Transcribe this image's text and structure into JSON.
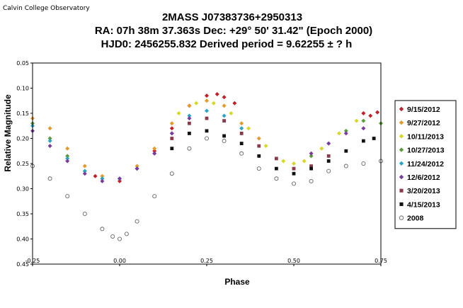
{
  "credit": "Calvin College Observatory",
  "title": "2MASS J07383736+2950313",
  "subtitle1": "RA: 07h 38m 37.363s    Dec: +29° 50' 31.42\"  (Epoch 2000)",
  "subtitle2": "HJD0: 2456255.832      Derived period =  9.62255 ±  ? h",
  "chart_data": {
    "type": "scatter",
    "xlabel": "Phase",
    "ylabel": "Relative Magnitude",
    "xlim": [
      -0.25,
      0.75
    ],
    "ylim": [
      0.45,
      0.05
    ],
    "x_ticks": [
      "-0.25",
      "0.00",
      "0.25",
      "0.50",
      "0.75"
    ],
    "y_ticks": [
      "0.05",
      "0.10",
      "0.15",
      "0.20",
      "0.25",
      "0.30",
      "0.35",
      "0.40",
      "0.45"
    ],
    "grid": false,
    "legend_position": "right",
    "series": [
      {
        "name": "9/15/2012",
        "color": "#c0202a",
        "marker": "diamond",
        "points": [
          [
            -0.07,
            0.275
          ],
          [
            0.0,
            0.285
          ],
          [
            0.05,
            0.26
          ],
          [
            0.1,
            0.225
          ],
          [
            0.15,
            0.18
          ],
          [
            0.2,
            0.135
          ],
          [
            0.25,
            0.115
          ],
          [
            0.28,
            0.112
          ],
          [
            0.3,
            0.118
          ],
          [
            0.33,
            0.13
          ],
          [
            0.7,
            0.15
          ],
          [
            0.72,
            0.155
          ],
          [
            0.74,
            0.148
          ]
        ]
      },
      {
        "name": "9/27/2012",
        "color": "#e39a2a",
        "marker": "diamond",
        "points": [
          [
            -0.25,
            0.16
          ],
          [
            -0.2,
            0.18
          ],
          [
            -0.15,
            0.22
          ],
          [
            -0.1,
            0.255
          ],
          [
            -0.05,
            0.275
          ],
          [
            0.0,
            0.28
          ],
          [
            0.05,
            0.255
          ],
          [
            0.1,
            0.22
          ],
          [
            0.15,
            0.17
          ],
          [
            0.2,
            0.135
          ],
          [
            0.25,
            0.125
          ],
          [
            0.3,
            0.135
          ],
          [
            0.35,
            0.17
          ],
          [
            0.4,
            0.2
          ]
        ]
      },
      {
        "name": "10/11/2013",
        "color": "#d8d820",
        "marker": "diamond",
        "points": [
          [
            0.17,
            0.15
          ],
          [
            0.22,
            0.13
          ],
          [
            0.27,
            0.13
          ],
          [
            0.32,
            0.15
          ],
          [
            0.37,
            0.18
          ],
          [
            0.42,
            0.215
          ],
          [
            0.47,
            0.245
          ],
          [
            0.5,
            0.25
          ],
          [
            0.53,
            0.245
          ],
          [
            0.58,
            0.22
          ],
          [
            0.63,
            0.19
          ],
          [
            0.68,
            0.165
          ]
        ]
      },
      {
        "name": "10/27/2013",
        "color": "#5a9a3a",
        "marker": "diamond",
        "points": [
          [
            -0.25,
            0.17
          ],
          [
            -0.2,
            0.2
          ],
          [
            -0.15,
            0.235
          ],
          [
            -0.1,
            0.265
          ],
          [
            -0.05,
            0.28
          ],
          [
            0.0,
            0.28
          ],
          [
            0.05,
            0.26
          ],
          [
            0.55,
            0.235
          ],
          [
            0.6,
            0.21
          ],
          [
            0.65,
            0.185
          ],
          [
            0.7,
            0.165
          ],
          [
            0.75,
            0.17
          ]
        ]
      },
      {
        "name": "11/24/2012",
        "color": "#2aa6c4",
        "marker": "diamond",
        "points": [
          [
            -0.25,
            0.175
          ],
          [
            -0.2,
            0.205
          ],
          [
            -0.15,
            0.24
          ],
          [
            -0.1,
            0.265
          ],
          [
            -0.05,
            0.28
          ],
          [
            0.0,
            0.28
          ],
          [
            0.05,
            0.26
          ],
          [
            0.1,
            0.23
          ],
          [
            0.15,
            0.19
          ],
          [
            0.2,
            0.155
          ],
          [
            0.25,
            0.145
          ],
          [
            0.3,
            0.155
          ],
          [
            0.35,
            0.18
          ]
        ]
      },
      {
        "name": "12/6/2012",
        "color": "#7a3c9c",
        "marker": "diamond",
        "points": [
          [
            -0.25,
            0.185
          ],
          [
            -0.2,
            0.215
          ],
          [
            -0.15,
            0.245
          ],
          [
            -0.1,
            0.27
          ],
          [
            -0.05,
            0.285
          ],
          [
            0.0,
            0.28
          ],
          [
            0.05,
            0.26
          ],
          [
            0.1,
            0.23
          ],
          [
            0.15,
            0.19
          ],
          [
            0.2,
            0.16
          ],
          [
            0.55,
            0.23
          ],
          [
            0.6,
            0.21
          ],
          [
            0.65,
            0.19
          ],
          [
            0.7,
            0.18
          ]
        ]
      },
      {
        "name": "3/20/2013",
        "color": "#8a3a4a",
        "marker": "square",
        "points": [
          [
            0.15,
            0.2
          ],
          [
            0.2,
            0.17
          ],
          [
            0.25,
            0.16
          ],
          [
            0.3,
            0.165
          ],
          [
            0.35,
            0.19
          ],
          [
            0.4,
            0.215
          ],
          [
            0.45,
            0.24
          ],
          [
            0.5,
            0.26
          ],
          [
            0.55,
            0.255
          ],
          [
            0.6,
            0.235
          ]
        ]
      },
      {
        "name": "4/15/2013",
        "color": "#111111",
        "marker": "square",
        "points": [
          [
            0.15,
            0.22
          ],
          [
            0.2,
            0.19
          ],
          [
            0.25,
            0.185
          ],
          [
            0.3,
            0.195
          ],
          [
            0.35,
            0.21
          ],
          [
            0.4,
            0.235
          ],
          [
            0.45,
            0.26
          ],
          [
            0.5,
            0.27
          ],
          [
            0.55,
            0.26
          ],
          [
            0.6,
            0.245
          ],
          [
            0.65,
            0.225
          ],
          [
            0.7,
            0.205
          ],
          [
            0.73,
            0.2
          ]
        ]
      },
      {
        "name": "2008",
        "color": "#666666",
        "marker": "open-circle",
        "points": [
          [
            -0.25,
            0.255
          ],
          [
            -0.2,
            0.28
          ],
          [
            -0.15,
            0.315
          ],
          [
            -0.1,
            0.35
          ],
          [
            -0.05,
            0.38
          ],
          [
            -0.02,
            0.395
          ],
          [
            0.0,
            0.4
          ],
          [
            0.02,
            0.39
          ],
          [
            0.05,
            0.365
          ],
          [
            0.1,
            0.315
          ],
          [
            0.15,
            0.27
          ],
          [
            0.2,
            0.22
          ],
          [
            0.25,
            0.2
          ],
          [
            0.3,
            0.205
          ],
          [
            0.35,
            0.23
          ],
          [
            0.4,
            0.26
          ],
          [
            0.45,
            0.28
          ],
          [
            0.5,
            0.29
          ],
          [
            0.55,
            0.285
          ],
          [
            0.6,
            0.265
          ],
          [
            0.65,
            0.255
          ],
          [
            0.7,
            0.25
          ],
          [
            0.75,
            0.245
          ]
        ]
      }
    ]
  }
}
